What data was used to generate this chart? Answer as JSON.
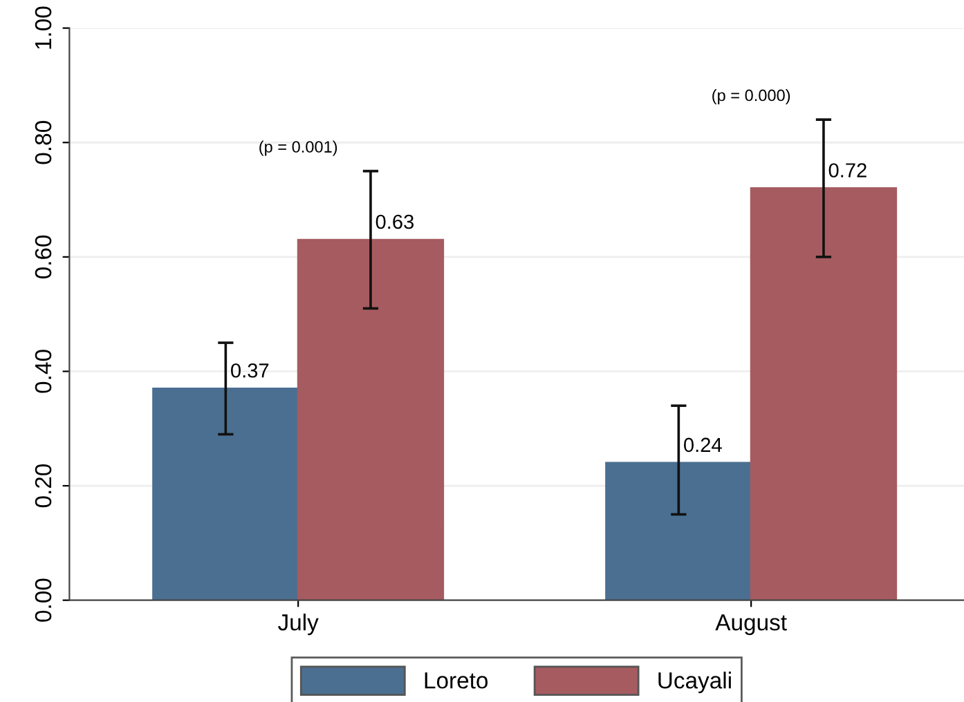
{
  "chart_data": {
    "type": "bar",
    "categories": [
      "July",
      "August"
    ],
    "series": [
      {
        "name": "Loreto",
        "color": "#4a6f91",
        "values": [
          0.37,
          0.24
        ],
        "errors": [
          [
            0.29,
            0.45
          ],
          [
            0.15,
            0.34
          ]
        ]
      },
      {
        "name": "Ucayali",
        "color": "#a65b60",
        "values": [
          0.63,
          0.72
        ],
        "errors": [
          [
            0.51,
            0.75
          ],
          [
            0.6,
            0.84
          ]
        ]
      }
    ],
    "ylim": [
      0,
      1.0
    ],
    "yticks": [
      {
        "value": 0,
        "label": "0.00"
      },
      {
        "value": 0.2,
        "label": "0.20"
      },
      {
        "value": 0.4,
        "label": "0.40"
      },
      {
        "value": 0.6,
        "label": "0.60"
      },
      {
        "value": 0.8,
        "label": "0.80"
      },
      {
        "value": 1.0,
        "label": "1.00"
      }
    ],
    "annotations": [
      "(p = 0.001)",
      "(p = 0.000)"
    ],
    "data_labels": true,
    "grid": "y",
    "legend": "bottom"
  }
}
